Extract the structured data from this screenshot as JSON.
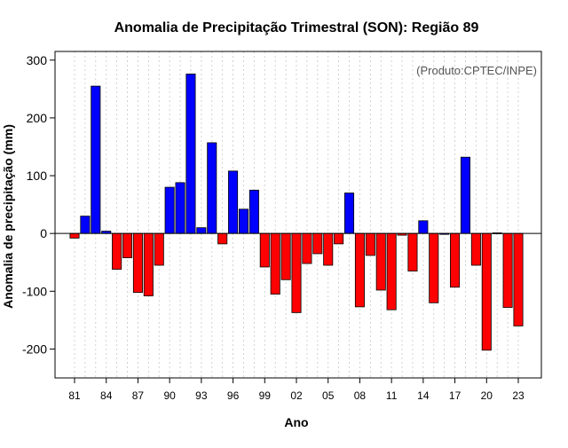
{
  "chart_data": {
    "type": "bar",
    "title": "Anomalia de Precipitação Trimestral (SON): Região 89",
    "xlabel": "Ano",
    "ylabel": "Anomalia de precipitação (mm)",
    "annotation": "(Produto:CPTEC/INPE)",
    "ylim": [
      -250,
      315
    ],
    "yticks": [
      -200,
      -100,
      0,
      100,
      200,
      300
    ],
    "xtick_labels": [
      "81",
      "84",
      "87",
      "90",
      "93",
      "96",
      "99",
      "02",
      "05",
      "08",
      "11",
      "14",
      "17",
      "20",
      "23"
    ],
    "grid": true,
    "colors": {
      "positive": "#0000ff",
      "negative": "#ff0000",
      "outline": "#000000"
    },
    "categories": [
      "1981",
      "1982",
      "1983",
      "1984",
      "1985",
      "1986",
      "1987",
      "1988",
      "1989",
      "1990",
      "1991",
      "1992",
      "1993",
      "1994",
      "1995",
      "1996",
      "1997",
      "1998",
      "1999",
      "2000",
      "2001",
      "2002",
      "2003",
      "2004",
      "2005",
      "2006",
      "2007",
      "2008",
      "2009",
      "2010",
      "2011",
      "2012",
      "2013",
      "2014",
      "2015",
      "2016",
      "2017",
      "2018",
      "2019",
      "2020",
      "2021",
      "2022",
      "2023"
    ],
    "values": [
      -8,
      30,
      255,
      4,
      -62,
      -42,
      -102,
      -108,
      -55,
      80,
      88,
      276,
      10,
      157,
      -18,
      108,
      42,
      75,
      -58,
      -105,
      -80,
      -137,
      -52,
      -35,
      -55,
      -18,
      70,
      -127,
      -38,
      -98,
      -132,
      -3,
      -65,
      22,
      -120,
      0,
      -93,
      132,
      -55,
      -202,
      1,
      -128,
      -160
    ]
  }
}
